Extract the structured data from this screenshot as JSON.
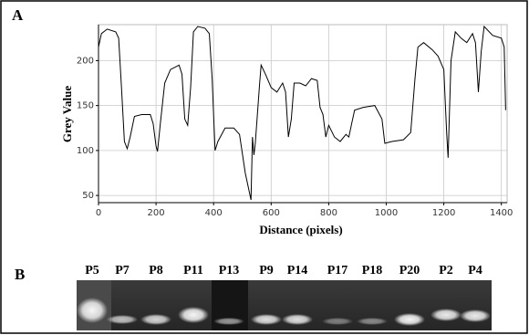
{
  "figure": {
    "labels": [
      "A",
      "B"
    ]
  },
  "chart_data": {
    "type": "line",
    "xlabel": "Distance (pixels)",
    "ylabel": "Grey Value",
    "color": "#000000",
    "grid": true,
    "x": [
      0,
      10,
      30,
      60,
      70,
      80,
      90,
      100,
      110,
      125,
      150,
      180,
      190,
      200,
      205,
      215,
      230,
      250,
      280,
      290,
      300,
      310,
      320,
      330,
      345,
      370,
      385,
      395,
      405,
      415,
      440,
      470,
      490,
      510,
      530,
      535,
      540,
      545,
      560,
      565,
      580,
      600,
      620,
      640,
      650,
      660,
      670,
      680,
      700,
      720,
      740,
      760,
      770,
      780,
      790,
      800,
      820,
      840,
      860,
      870,
      880,
      890,
      920,
      960,
      985,
      995,
      1020,
      1060,
      1085,
      1100,
      1110,
      1130,
      1160,
      1180,
      1200,
      1210,
      1215,
      1225,
      1240,
      1260,
      1280,
      1300,
      1310,
      1320,
      1330,
      1340,
      1370,
      1400,
      1410,
      1415
    ],
    "values": [
      215,
      230,
      235,
      232,
      225,
      170,
      110,
      102,
      115,
      138,
      140,
      140,
      130,
      105,
      99,
      130,
      175,
      190,
      195,
      185,
      135,
      128,
      170,
      232,
      238,
      236,
      230,
      180,
      100,
      110,
      125,
      125,
      118,
      75,
      45,
      115,
      95,
      108,
      175,
      195,
      185,
      170,
      165,
      175,
      165,
      115,
      135,
      175,
      175,
      172,
      180,
      178,
      148,
      140,
      115,
      128,
      115,
      110,
      118,
      115,
      130,
      145,
      148,
      150,
      135,
      108,
      110,
      112,
      120,
      180,
      215,
      220,
      212,
      205,
      190,
      120,
      92,
      200,
      232,
      225,
      220,
      230,
      220,
      165,
      210,
      238,
      228,
      225,
      215,
      145
    ],
    "xlim": [
      0,
      1420
    ],
    "ylim": [
      42,
      240
    ],
    "xticks": [
      0,
      200,
      400,
      600,
      800,
      1000,
      1200,
      1400
    ],
    "yticks": [
      50,
      100,
      150,
      200
    ]
  },
  "gel": {
    "lanes": [
      "P5",
      "P7",
      "P8",
      "P11",
      "P13",
      "P9",
      "P14",
      "P17",
      "P18",
      "P20",
      "P2",
      "P4"
    ]
  }
}
